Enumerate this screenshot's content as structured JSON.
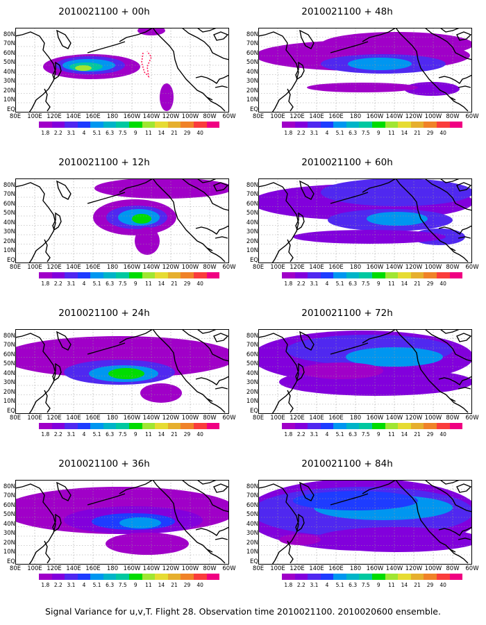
{
  "footer": "Signal Variance for u,v,T. Flight 28. Observation time 2010021100. 2010020600 ensemble.",
  "lat_labels": [
    "80N",
    "70N",
    "60N",
    "50N",
    "40N",
    "30N",
    "20N",
    "10N",
    "EQ"
  ],
  "lon_labels": [
    "80E",
    "100E",
    "120E",
    "140E",
    "160E",
    "180",
    "160W",
    "140W",
    "120W",
    "100W",
    "80W",
    "60W"
  ],
  "colorbar": {
    "labels": [
      "1.8",
      "2.2",
      "3.1",
      "4",
      "5.1",
      "6.3",
      "7.5",
      "9",
      "11",
      "14",
      "21",
      "29",
      "40"
    ],
    "colors": [
      "#a000c8",
      "#8200dc",
      "#5028f0",
      "#1e3cff",
      "#0096f0",
      "#00b4c8",
      "#00c8a0",
      "#00dc00",
      "#a0e632",
      "#e6dc32",
      "#e6af2d",
      "#f08228",
      "#fa3c3c",
      "#f00082"
    ]
  },
  "panels": [
    {
      "title": "2010021100 + 00h"
    },
    {
      "title": "2010021100 + 48h"
    },
    {
      "title": "2010021100 + 12h"
    },
    {
      "title": "2010021100 + 60h"
    },
    {
      "title": "2010021100 + 24h"
    },
    {
      "title": "2010021100 + 72h"
    },
    {
      "title": "2010021100 + 36h"
    },
    {
      "title": "2010021100 + 84h"
    }
  ]
}
